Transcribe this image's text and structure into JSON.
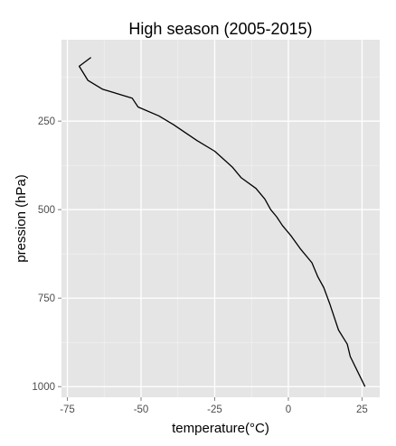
{
  "chart_data": {
    "type": "line",
    "title": "High season (2005-2015)",
    "xlabel": "temperature(°C)",
    "ylabel": "pression (hPa)",
    "xlim": [
      -77,
      31
    ],
    "ylim": [
      1030,
      20
    ],
    "y_reversed": true,
    "x_ticks": [
      -75,
      -50,
      -25,
      0,
      25
    ],
    "x_tick_labels": [
      "-75",
      "-50",
      "-25",
      "0",
      "25"
    ],
    "y_ticks": [
      250,
      500,
      750,
      1000
    ],
    "y_tick_labels": [
      "250",
      "500",
      "750",
      "1000"
    ],
    "grid": true,
    "legend": "none",
    "colors": {
      "panel_background": "#e5e5e5",
      "grid_major": "#ffffff",
      "grid_minor": "#f2f2f2",
      "line": "#000000",
      "tick_text": "#4d4d4d"
    },
    "series": [
      {
        "x": [
          -67,
          -71,
          -68,
          -63,
          -53,
          -51,
          -44,
          -39,
          -31,
          -25,
          -19,
          -16,
          -11,
          -8,
          -6,
          -4,
          -2,
          1,
          4,
          8,
          10,
          12,
          14,
          17,
          20,
          21,
          26
        ],
        "y": [
          70,
          95,
          135,
          160,
          185,
          210,
          235,
          260,
          305,
          335,
          380,
          410,
          440,
          470,
          500,
          520,
          545,
          575,
          610,
          650,
          690,
          720,
          765,
          840,
          880,
          915,
          1000
        ]
      }
    ]
  }
}
